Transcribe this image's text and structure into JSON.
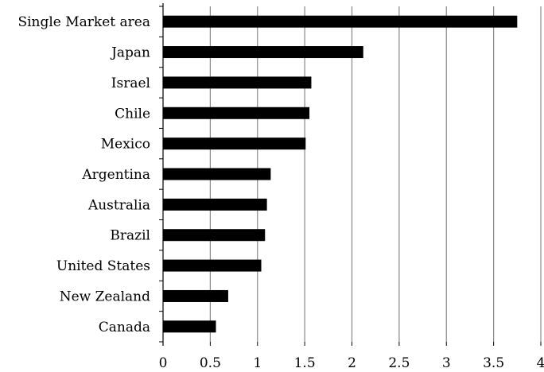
{
  "chart_data": {
    "type": "bar",
    "orientation": "horizontal",
    "title": "",
    "xlabel": "",
    "ylabel": "",
    "categories": [
      "Single Market area",
      "Japan",
      "Israel",
      "Chile",
      "Mexico",
      "Argentina",
      "Australia",
      "Brazil",
      "United States",
      "New Zealand",
      "Canada"
    ],
    "values": [
      3.75,
      2.12,
      1.57,
      1.55,
      1.51,
      1.14,
      1.1,
      1.08,
      1.04,
      0.69,
      0.56
    ],
    "xlim": [
      0,
      4
    ],
    "xticks": [
      "0",
      "0.5",
      "1",
      "1.5",
      "2",
      "2.5",
      "3",
      "3.5",
      "4"
    ],
    "grid": "vertical",
    "legend": "none",
    "colors": {
      "bar": "#000000",
      "grid": "#888888",
      "axis": "#000000"
    }
  }
}
